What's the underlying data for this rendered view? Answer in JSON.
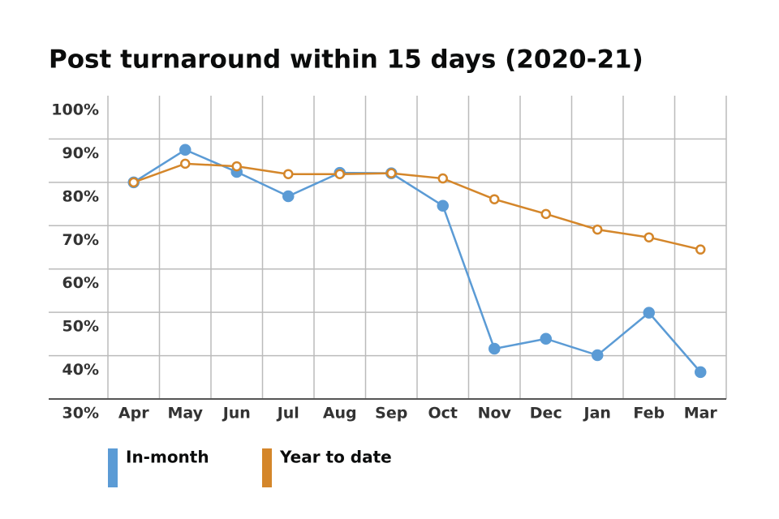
{
  "chart_data": {
    "type": "line",
    "title": "Post turnaround within 15 days (2020-21)",
    "categories": [
      "Apr",
      "May",
      "Jun",
      "Jul",
      "Aug",
      "Sep",
      "Oct",
      "Nov",
      "Dec",
      "Jan",
      "Feb",
      "Mar"
    ],
    "series": [
      {
        "name": "In-month",
        "color": "#5b9bd5",
        "values": [
          80.0,
          87.5,
          82.4,
          76.8,
          82.2,
          82.1,
          74.6,
          41.6,
          43.9,
          40.1,
          49.9,
          36.2
        ]
      },
      {
        "name": "Year to date",
        "color": "#d4862a",
        "values": [
          80.0,
          84.3,
          83.7,
          81.9,
          81.9,
          82.1,
          80.9,
          76.1,
          72.7,
          69.1,
          67.3,
          64.5
        ]
      }
    ],
    "ylim": [
      30,
      100
    ],
    "yticks": [
      {
        "value": 30,
        "label": "30%"
      },
      {
        "value": 40,
        "label": "40%"
      },
      {
        "value": 50,
        "label": "50%"
      },
      {
        "value": 60,
        "label": "60%"
      },
      {
        "value": 70,
        "label": "70%"
      },
      {
        "value": 80,
        "label": "80%"
      },
      {
        "value": 90,
        "label": "90%"
      },
      {
        "value": 100,
        "label": "100%"
      }
    ],
    "grid": true
  }
}
